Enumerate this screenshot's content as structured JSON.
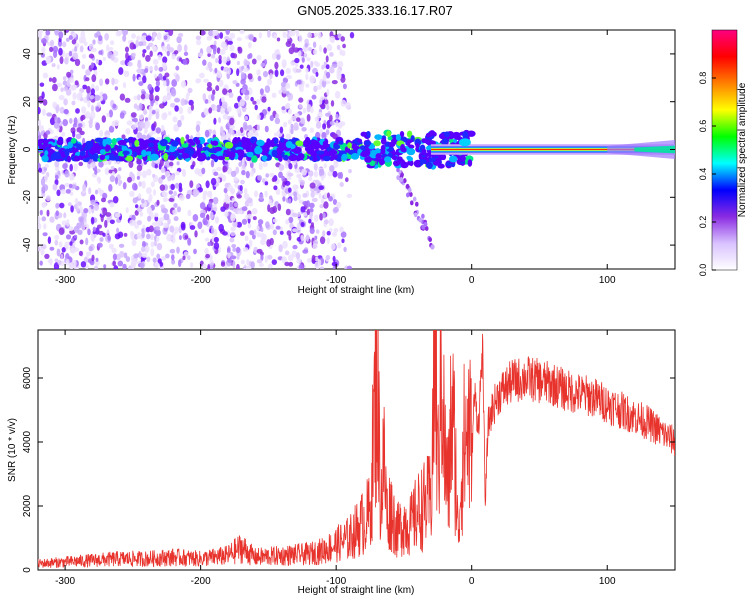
{
  "title": "GN05.2025.333.16.17.R07",
  "colors": {
    "signal": "#e8332d",
    "axis": "#000000",
    "background": "#ffffff"
  },
  "chart_data": [
    {
      "type": "heatmap",
      "xlabel": "Height of straight line (km)",
      "ylabel": "Frequency (Hz)",
      "xlim": [
        -320,
        150
      ],
      "ylim": [
        -50,
        50
      ],
      "x_ticks": [
        -300,
        -200,
        -100,
        0,
        100
      ],
      "y_ticks": [
        -40,
        -20,
        0,
        20,
        40
      ],
      "colorbar": {
        "label": "Normalized spectral amplitude",
        "range": [
          0,
          1
        ],
        "ticks": [
          "0.0",
          "0.2",
          "0.4",
          "0.6",
          "0.8"
        ],
        "colormap": [
          "#ffffff",
          "#d9c2ff",
          "#8a2be2",
          "#0000ff",
          "#00ffff",
          "#00ff00",
          "#ffff00",
          "#ff8000",
          "#ff0000",
          "#ff0080"
        ]
      },
      "features": {
        "central_band_frequency_hz": 0,
        "noise_region_km": [
          -320,
          -100
        ],
        "clean_carrier_region_km": [
          0,
          150
        ]
      }
    },
    {
      "type": "line",
      "xlabel": "Height of straight line (km)",
      "ylabel": "SNR (10 * v/v)",
      "xlim": [
        -320,
        150
      ],
      "ylim": [
        0,
        7500
      ],
      "x_ticks": [
        -300,
        -200,
        -100,
        0,
        100
      ],
      "y_ticks": [
        0,
        2000,
        4000,
        6000
      ],
      "series": [
        {
          "x": [
            -320,
            -300,
            -280,
            -260,
            -240,
            -220,
            -200,
            -180,
            -170,
            -160,
            -140,
            -120,
            -110,
            -100,
            -90,
            -80,
            -75,
            -70,
            -67,
            -65,
            -62,
            -60,
            -55,
            -50,
            -45,
            -40,
            -35,
            -30,
            -27,
            -25,
            -22,
            -20,
            -17,
            -15,
            -12,
            -10,
            -7,
            -5,
            -2,
            0,
            2,
            5,
            8,
            10,
            12,
            15,
            20,
            25,
            30,
            40,
            50,
            60,
            70,
            80,
            90,
            100,
            110,
            120,
            130,
            140,
            150
          ],
          "values": [
            200,
            250,
            300,
            350,
            350,
            400,
            350,
            450,
            700,
            400,
            450,
            500,
            600,
            800,
            1000,
            1500,
            1800,
            6500,
            2000,
            3500,
            1500,
            2000,
            1200,
            1500,
            1400,
            1800,
            2000,
            2200,
            7300,
            3000,
            7000,
            3500,
            2500,
            5000,
            3500,
            1000,
            3500,
            4000,
            4500,
            3500,
            5500,
            4500,
            7000,
            2000,
            4500,
            5000,
            5500,
            5700,
            5900,
            6000,
            5900,
            5800,
            5600,
            5500,
            5400,
            5200,
            5000,
            4800,
            4600,
            4300,
            4000
          ]
        }
      ]
    }
  ]
}
